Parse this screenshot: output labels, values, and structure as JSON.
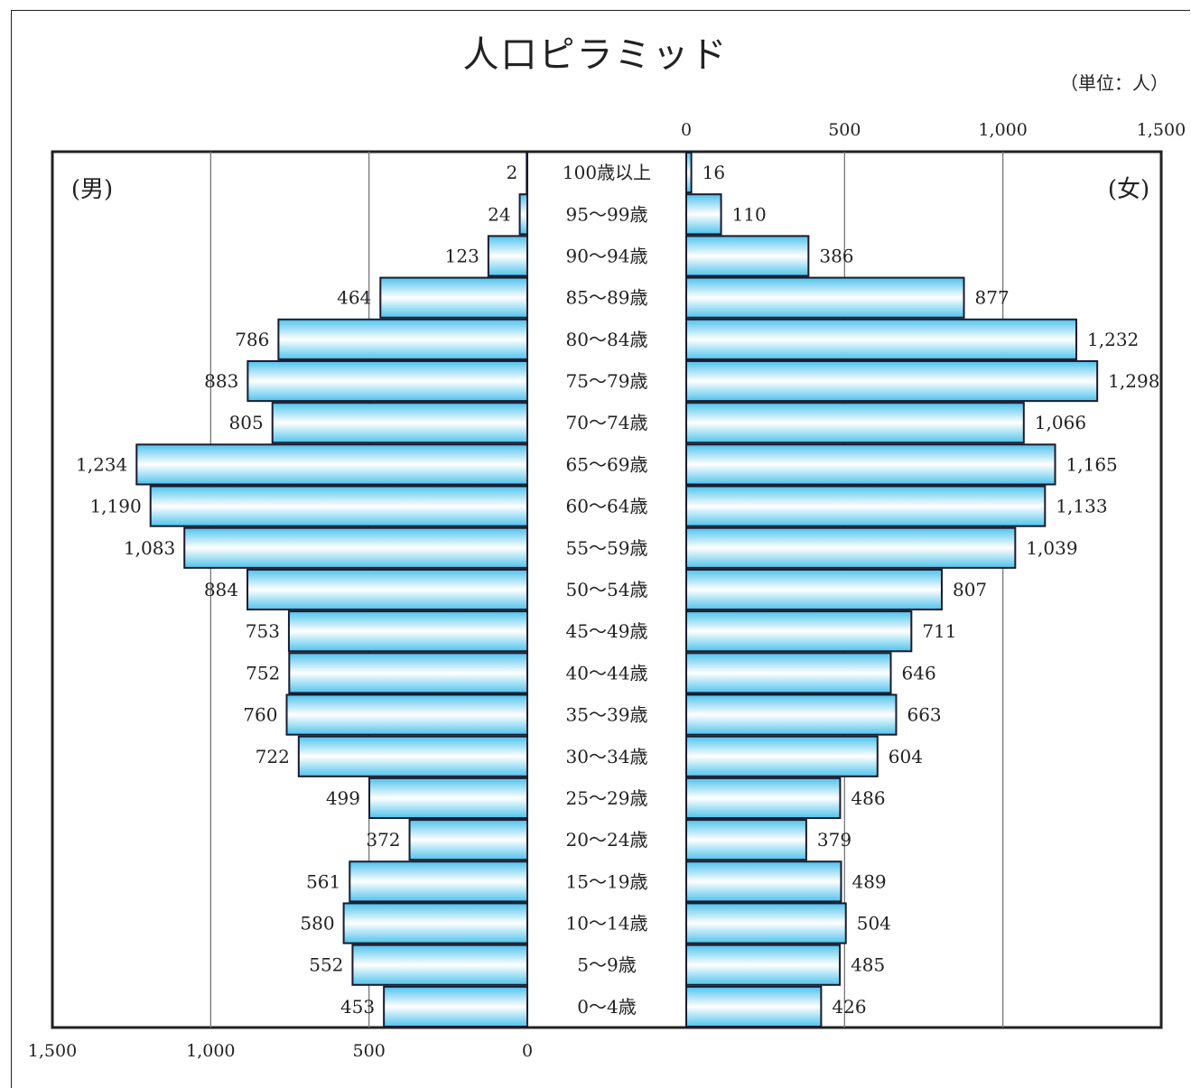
{
  "title": "人口ピラミッド",
  "unit": "（単位：人）",
  "chart_data": {
    "type": "bar",
    "title": "人口ピラミッド",
    "unit": "（単位：人）",
    "left_label": "(男)",
    "right_label": "(女)",
    "categories": [
      "100歳以上",
      "95〜99歳",
      "90〜94歳",
      "85〜89歳",
      "80〜84歳",
      "75〜79歳",
      "70〜74歳",
      "65〜69歳",
      "60〜64歳",
      "55〜59歳",
      "50〜54歳",
      "45〜49歳",
      "40〜44歳",
      "35〜39歳",
      "30〜34歳",
      "25〜29歳",
      "20〜24歳",
      "15〜19歳",
      "10〜14歳",
      "5〜9歳",
      "0〜4歳"
    ],
    "series": [
      {
        "name": "(男)",
        "values": [
          2,
          24,
          123,
          464,
          786,
          883,
          805,
          1234,
          1190,
          1083,
          884,
          753,
          752,
          760,
          722,
          499,
          372,
          561,
          580,
          552,
          453
        ],
        "labels": [
          "2",
          "24",
          "123",
          "464",
          "786",
          "883",
          "805",
          "1,234",
          "1,190",
          "1,083",
          "884",
          "753",
          "752",
          "760",
          "722",
          "499",
          "372",
          "561",
          "580",
          "552",
          "453"
        ]
      },
      {
        "name": "(女)",
        "values": [
          16,
          110,
          386,
          877,
          1232,
          1298,
          1066,
          1165,
          1133,
          1039,
          807,
          711,
          646,
          663,
          604,
          486,
          379,
          489,
          504,
          485,
          426
        ],
        "labels": [
          "16",
          "110",
          "386",
          "877",
          "1,232",
          "1,298",
          "1,066",
          "1,165",
          "1,133",
          "1,039",
          "807",
          "711",
          "646",
          "663",
          "604",
          "486",
          "379",
          "489",
          "504",
          "485",
          "426"
        ]
      }
    ],
    "xlim": [
      0,
      1500
    ],
    "left_ticks": [
      "1,500",
      "1,000",
      "500",
      "0"
    ],
    "right_ticks": [
      "0",
      "500",
      "1,000",
      "1,500"
    ],
    "grid": true,
    "bar_colors": [
      "#5bc8ee",
      "#ffffff"
    ]
  }
}
